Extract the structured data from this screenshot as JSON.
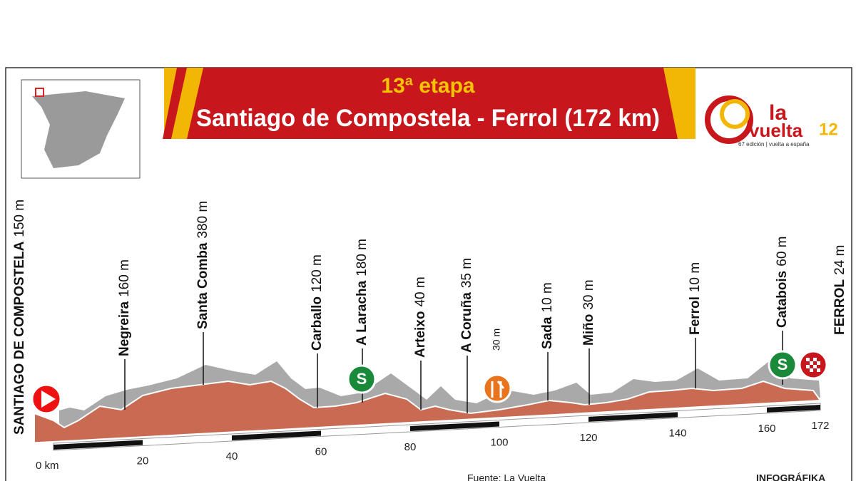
{
  "header": {
    "stage": "13ª etapa",
    "route": "Santiago de Compostela - Ferrol (172 km)"
  },
  "logo": {
    "la": "la",
    "vuelta": "vuelta",
    "year": "12",
    "tagline": "67 edición | vuelta a españa"
  },
  "waypoints": [
    {
      "name": "SANTIAGO DE COMPOSTELA",
      "elevation": "150 m"
    },
    {
      "name": "Negreira",
      "elevation": "160 m"
    },
    {
      "name": "Santa Comba",
      "elevation": "380 m"
    },
    {
      "name": "Carballo",
      "elevation": "120 m"
    },
    {
      "name": "A Laracha",
      "elevation": "180 m"
    },
    {
      "name": "Arteixo",
      "elevation": "40 m"
    },
    {
      "name": "A Coruña",
      "elevation": "35 m"
    },
    {
      "name": "Sada",
      "elevation": "10 m"
    },
    {
      "name": "Miño",
      "elevation": "30 m"
    },
    {
      "name": "Ferrol",
      "elevation": "10 m"
    },
    {
      "name": "Catabois",
      "elevation": "60 m"
    },
    {
      "name": "FERROL",
      "elevation": "24 m"
    }
  ],
  "feed_zone": "30 m",
  "sprint_icon": "S",
  "km_axis": [
    "0 km",
    "20",
    "40",
    "60",
    "80",
    "100",
    "120",
    "140",
    "160",
    "172"
  ],
  "source": "Fuente: La Vuelta",
  "credit": "INFOGRÁFIKA"
}
